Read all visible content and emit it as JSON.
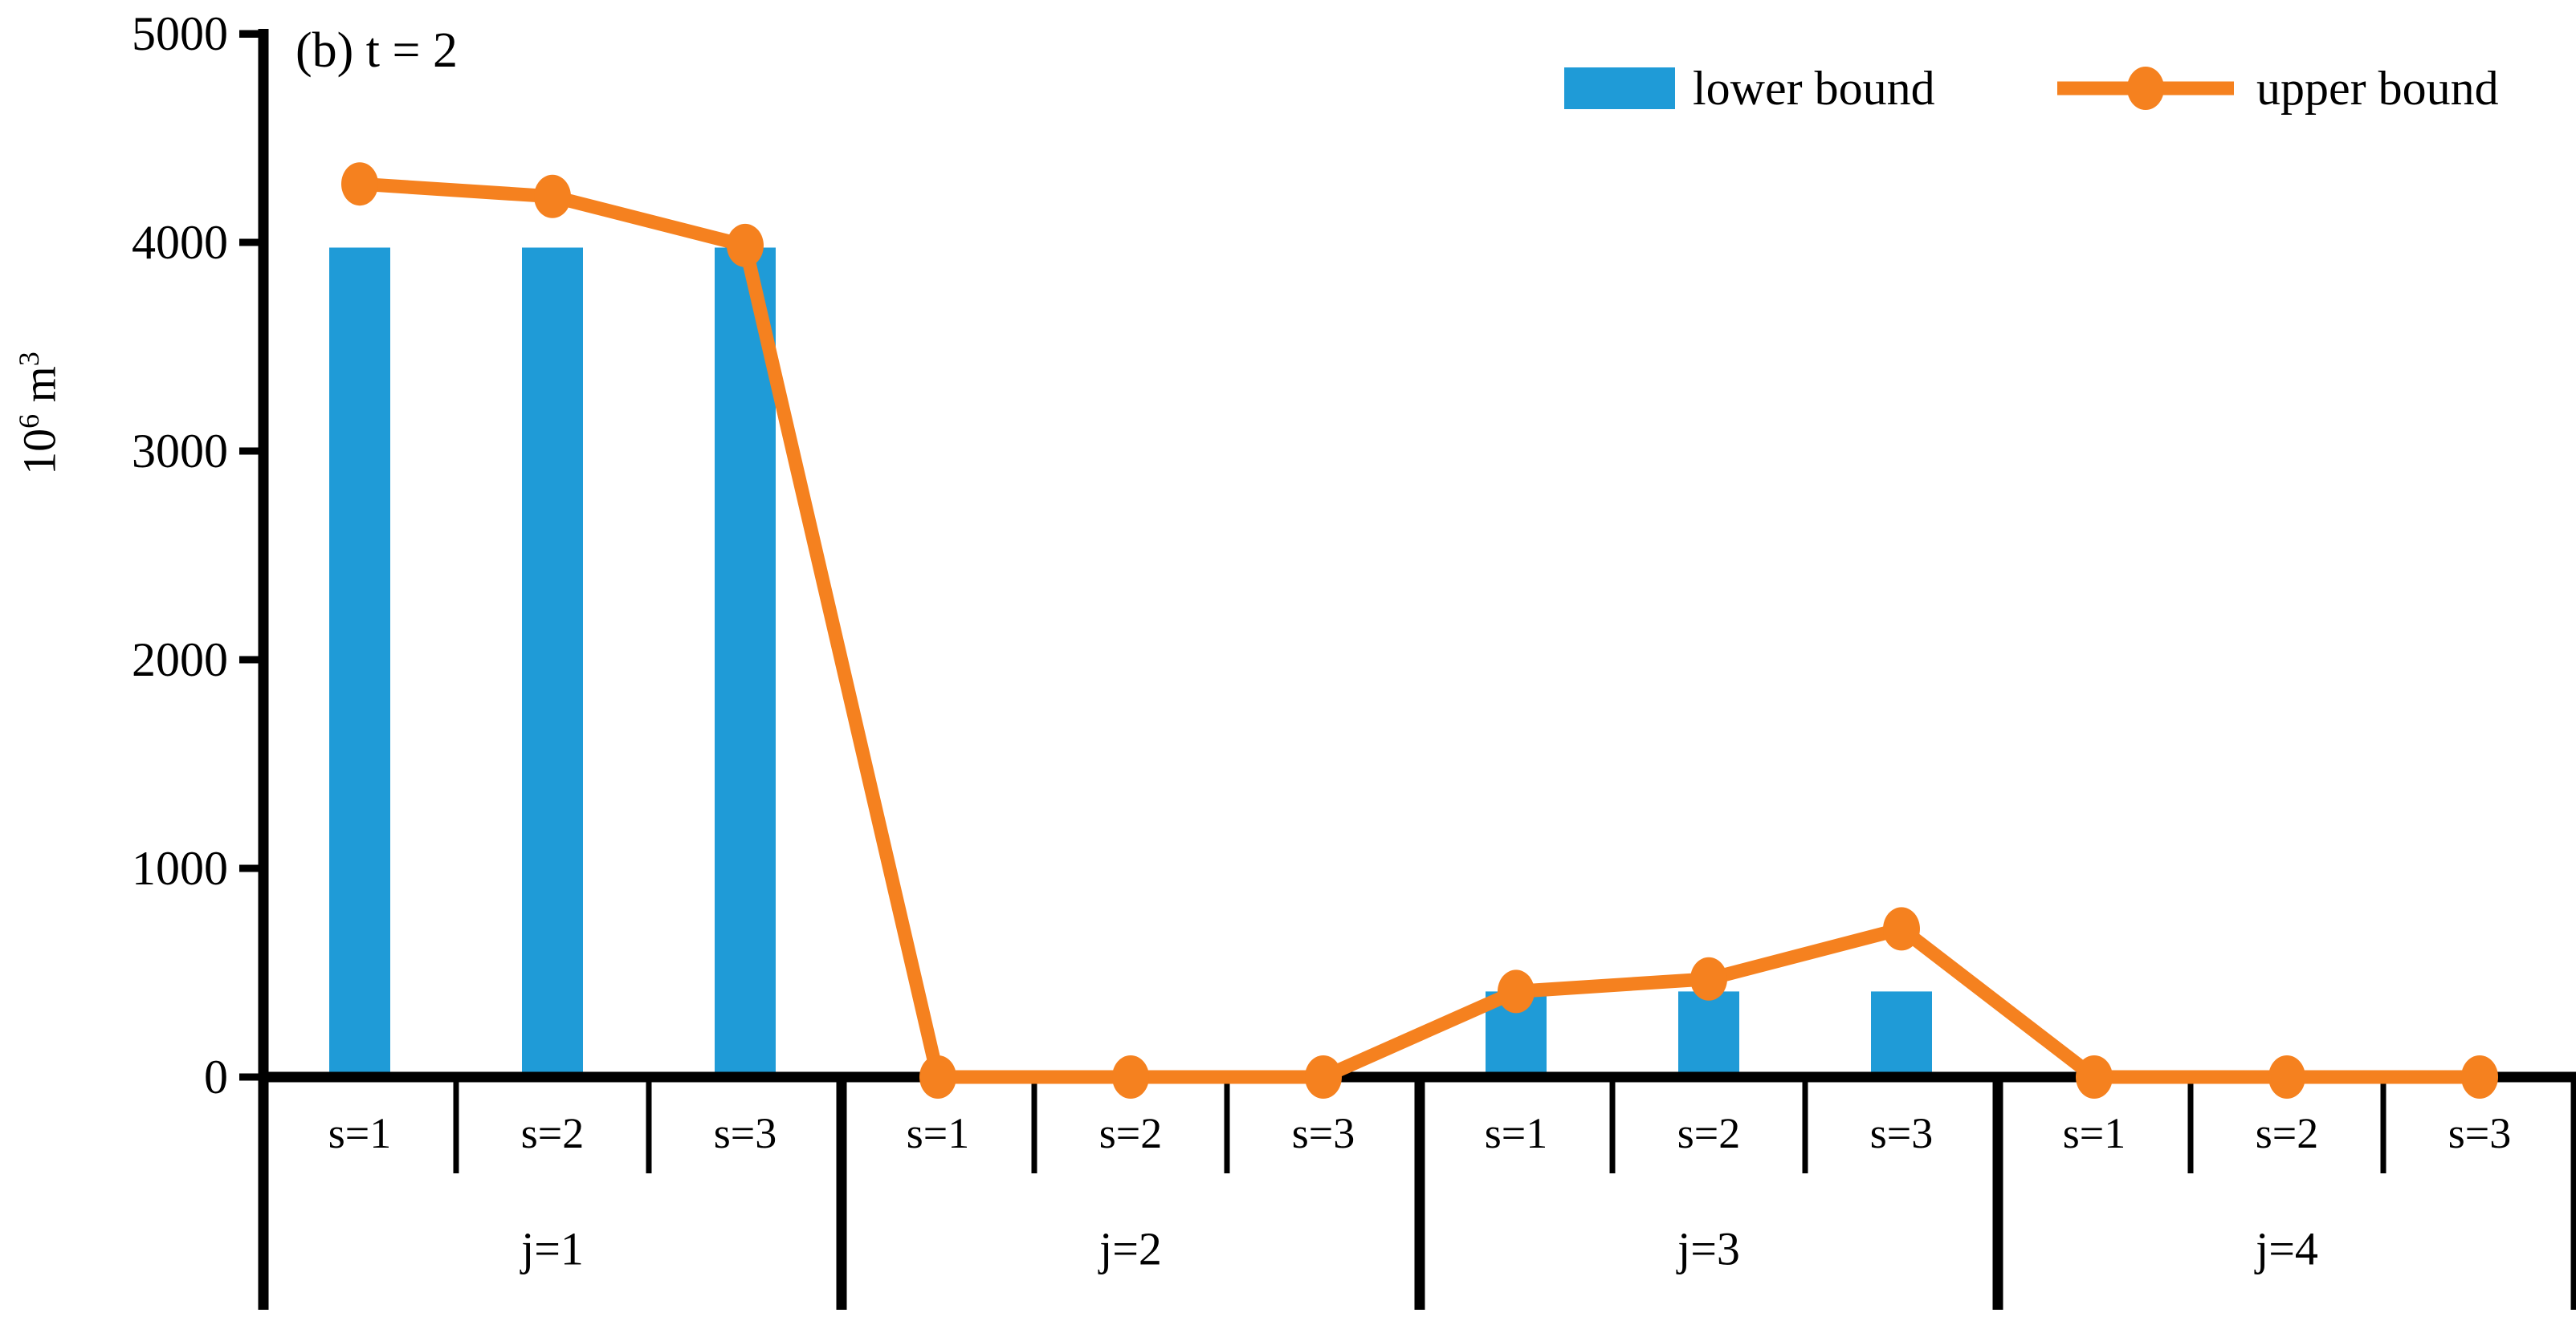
{
  "annotation": "(b) t = 2",
  "y_axis": {
    "base": "10",
    "exponent": "6",
    "unit": " m",
    "unit_exponent": "3",
    "tick_labels": [
      "0",
      "1000",
      "2000",
      "3000",
      "4000",
      "5000"
    ]
  },
  "legend": {
    "lower_label": "lower bound",
    "upper_label": "upper bound"
  },
  "colors": {
    "lower_bound": "#1F9BD7",
    "upper_bound": "#F5811F",
    "axis": "#000000"
  },
  "chart_data": {
    "type": "bar+line combo",
    "title": "(b) t = 2",
    "ylabel": "10^6 m^3",
    "ylim": [
      0,
      5000
    ],
    "ytick_interval": 1000,
    "grid": false,
    "legend_position": "top-right",
    "groups": [
      {
        "label": "j=1",
        "cells": [
          "s=1",
          "s=2",
          "s=3"
        ]
      },
      {
        "label": "j=2",
        "cells": [
          "s=1",
          "s=2",
          "s=3"
        ]
      },
      {
        "label": "j=3",
        "cells": [
          "s=1",
          "s=2",
          "s=3"
        ]
      },
      {
        "label": "j=4",
        "cells": [
          "s=1",
          "s=2",
          "s=3"
        ]
      }
    ],
    "series": [
      {
        "name": "lower bound",
        "type": "bar",
        "color": "#1F9BD7",
        "values": [
          3975,
          3975,
          3975,
          0,
          0,
          0,
          410,
          410,
          410,
          0,
          0,
          0
        ]
      },
      {
        "name": "upper bound",
        "type": "line",
        "color": "#F5811F",
        "marker": "circle",
        "values": [
          4280,
          4220,
          3985,
          0,
          0,
          0,
          410,
          470,
          710,
          0,
          0,
          0
        ]
      }
    ]
  }
}
